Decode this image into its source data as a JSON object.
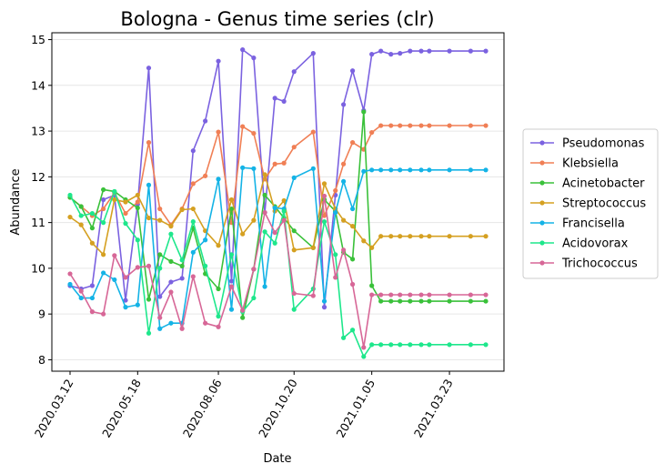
{
  "chart_data": {
    "type": "line",
    "title": "Bologna - Genus time series (clr)",
    "xlabel": "Date",
    "ylabel": "Abundance",
    "x": [
      "2020-03-12",
      "2020-03-23",
      "2020-04-03",
      "2020-04-14",
      "2020-04-25",
      "2020-05-06",
      "2020-05-18",
      "2020-05-29",
      "2020-06-09",
      "2020-06-20",
      "2020-07-01",
      "2020-07-12",
      "2020-07-24",
      "2020-08-06",
      "2020-08-19",
      "2020-08-30",
      "2020-09-10",
      "2020-09-21",
      "2020-10-01",
      "2020-10-10",
      "2020-10-20",
      "2020-11-08",
      "2020-11-19",
      "2020-11-30",
      "2020-12-08",
      "2020-12-17",
      "2020-12-28",
      "2021-01-05",
      "2021-01-14",
      "2021-01-24",
      "2021-02-02",
      "2021-02-12",
      "2021-02-23",
      "2021-03-03",
      "2021-03-23",
      "2021-04-13",
      "2021-04-28"
    ],
    "xticks": [
      "2020-03-12",
      "2020-05-18",
      "2020-08-06",
      "2020-10-20",
      "2021-01-05",
      "2021-03-23"
    ],
    "xtick_labels": [
      "2020.03.12",
      "2020.05.18",
      "2020.08.06",
      "2020.10.20",
      "2021.01.05",
      "2021.03.23"
    ],
    "ylim": [
      7.75,
      15.15
    ],
    "yticks": [
      8,
      9,
      10,
      11,
      12,
      13,
      14,
      15
    ],
    "grid": "y",
    "legend_position": "right",
    "series": [
      {
        "name": "Pseudomonas",
        "color": "#7b62e0",
        "values": [
          9.62,
          9.55,
          9.62,
          11.5,
          11.6,
          9.3,
          11.4,
          14.38,
          9.38,
          9.7,
          9.78,
          12.57,
          13.22,
          14.53,
          9.72,
          14.78,
          14.6,
          11.22,
          13.72,
          13.65,
          14.3,
          14.7,
          9.15,
          11.6,
          13.58,
          14.32,
          13.45,
          14.68,
          14.75,
          14.68,
          14.7,
          14.75,
          14.75,
          14.75,
          14.75,
          14.75,
          14.75
        ]
      },
      {
        "name": "Klebsiella",
        "color": "#f07f55",
        "values": [
          11.55,
          11.35,
          11.15,
          11.3,
          11.65,
          11.2,
          11.45,
          12.75,
          11.3,
          10.95,
          11.3,
          11.85,
          12.02,
          12.98,
          11.0,
          13.1,
          12.95,
          11.95,
          12.28,
          12.3,
          12.65,
          12.98,
          11.15,
          11.7,
          12.28,
          12.75,
          12.6,
          12.97,
          13.12,
          13.12,
          13.12,
          13.12,
          13.12,
          13.12,
          13.12,
          13.12,
          13.12
        ]
      },
      {
        "name": "Acinetobacter",
        "color": "#3ac13a",
        "values": [
          11.55,
          11.35,
          10.88,
          11.72,
          11.68,
          11.5,
          11.32,
          9.32,
          10.3,
          10.15,
          10.05,
          10.88,
          9.88,
          9.55,
          11.3,
          8.92,
          9.98,
          11.6,
          11.35,
          11.1,
          10.82,
          10.45,
          11.5,
          11.25,
          10.35,
          10.2,
          13.42,
          9.62,
          9.28,
          9.28,
          9.28,
          9.28,
          9.28,
          9.28,
          9.28,
          9.28,
          9.28
        ]
      },
      {
        "name": "Streptococcus",
        "color": "#d5a021",
        "values": [
          11.12,
          10.95,
          10.55,
          10.3,
          11.5,
          11.45,
          11.6,
          11.1,
          11.05,
          10.92,
          11.28,
          11.3,
          10.82,
          10.5,
          11.5,
          10.75,
          11.05,
          12.05,
          11.25,
          11.48,
          10.4,
          10.45,
          11.85,
          11.3,
          11.05,
          10.92,
          10.6,
          10.45,
          10.7,
          10.7,
          10.7,
          10.7,
          10.7,
          10.7,
          10.7,
          10.7,
          10.7
        ]
      },
      {
        "name": "Francisella",
        "color": "#14b3e6",
        "values": [
          9.65,
          9.35,
          9.35,
          9.9,
          9.75,
          9.15,
          9.2,
          11.82,
          8.68,
          8.8,
          8.8,
          10.35,
          10.62,
          11.95,
          9.1,
          12.2,
          12.18,
          9.6,
          11.32,
          11.3,
          11.98,
          12.18,
          9.28,
          11.22,
          11.9,
          11.3,
          12.12,
          12.15,
          12.15,
          12.15,
          12.15,
          12.15,
          12.15,
          12.15,
          12.15,
          12.15,
          12.15
        ]
      },
      {
        "name": "Acidovorax",
        "color": "#1ee78c",
        "values": [
          11.6,
          11.15,
          11.2,
          11.0,
          11.68,
          10.98,
          10.62,
          8.58,
          10.0,
          10.75,
          10.18,
          11.02,
          10.05,
          8.95,
          10.3,
          9.05,
          9.35,
          10.8,
          10.55,
          11.25,
          9.1,
          9.55,
          11.02,
          10.3,
          8.48,
          8.65,
          8.07,
          8.33,
          8.33,
          8.33,
          8.33,
          8.33,
          8.33,
          8.33,
          8.33,
          8.33,
          8.33
        ]
      },
      {
        "name": "Trichococcus",
        "color": "#d76797",
        "values": [
          9.88,
          9.5,
          9.05,
          9.0,
          10.28,
          9.8,
          10.02,
          10.05,
          8.92,
          9.48,
          8.68,
          9.82,
          8.8,
          8.72,
          9.6,
          9.08,
          9.98,
          11.22,
          10.78,
          11.05,
          9.45,
          9.4,
          11.58,
          9.8,
          10.4,
          9.65,
          8.27,
          9.42,
          9.42,
          9.42,
          9.42,
          9.42,
          9.42,
          9.42,
          9.42,
          9.42,
          9.42
        ]
      }
    ]
  }
}
